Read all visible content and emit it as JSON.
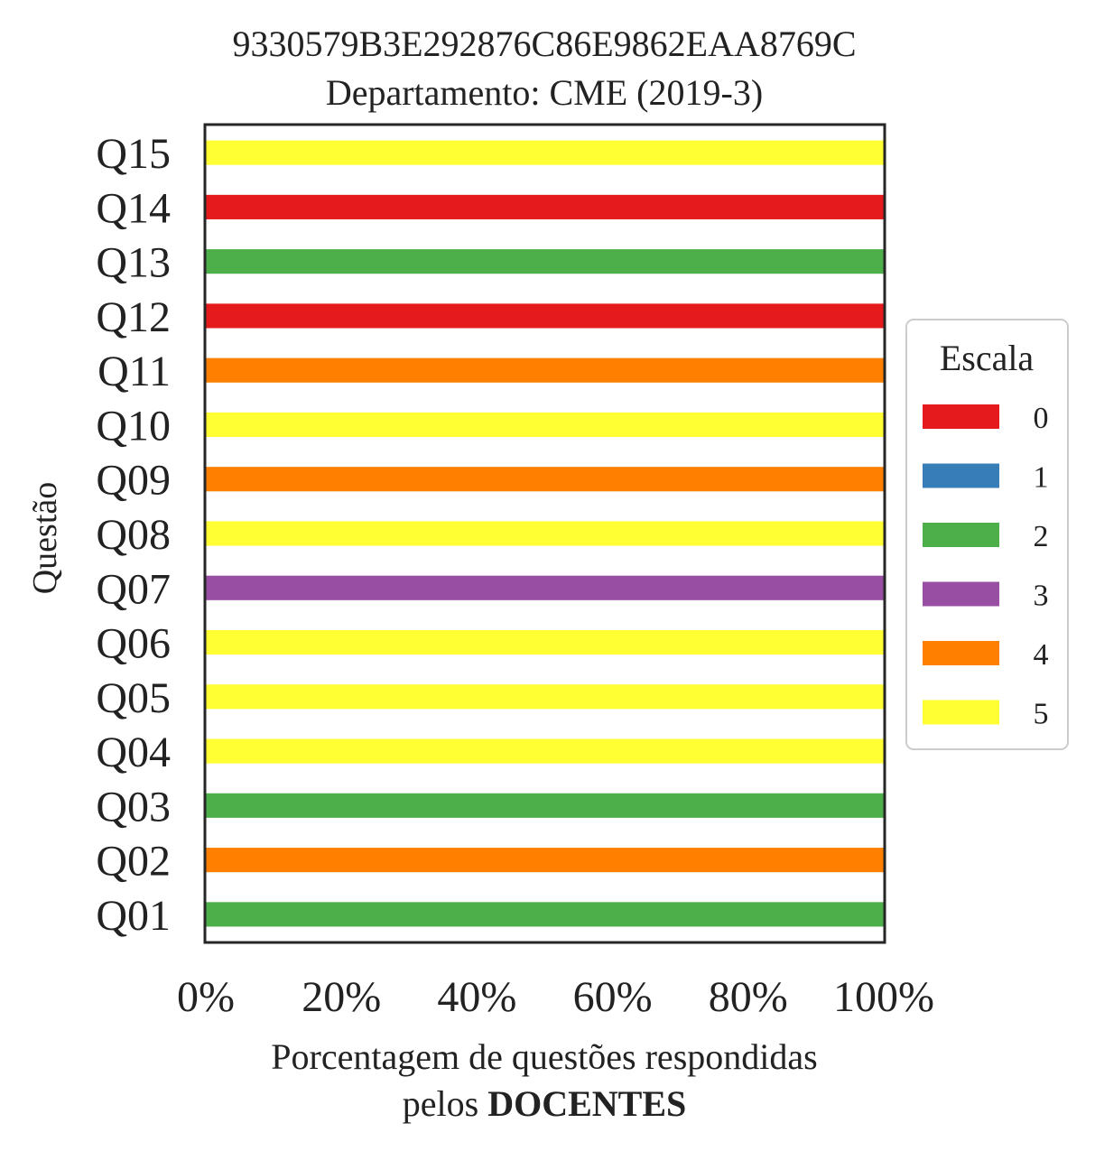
{
  "chart_data": {
    "type": "bar",
    "orientation": "horizontal",
    "stacked": true,
    "title_line1": "9330579B3E292876C86E9862EAA8769C",
    "title_line2": "Departamento: CME (2019-3)",
    "ylabel": "Questão",
    "xlabel_line1": "Porcentagem de questões respondidas",
    "xlabel_line2_prefix": "pelos ",
    "xlabel_line2_bold": "DOCENTES",
    "xlim": [
      0,
      100
    ],
    "xticks": [
      0,
      20,
      40,
      60,
      80,
      100
    ],
    "xtick_labels": [
      "0%",
      "20%",
      "40%",
      "60%",
      "80%",
      "100%"
    ],
    "categories": [
      "Q01",
      "Q02",
      "Q03",
      "Q04",
      "Q05",
      "Q06",
      "Q07",
      "Q08",
      "Q09",
      "Q10",
      "Q11",
      "Q12",
      "Q13",
      "Q14",
      "Q15"
    ],
    "legend": {
      "title": "Escala",
      "placement": "center-right, outside"
    },
    "series": [
      {
        "name": "0",
        "color": "#e41a1c",
        "values": [
          0,
          0,
          0,
          0,
          0,
          0,
          0,
          0,
          0,
          0,
          0,
          100,
          0,
          100,
          0
        ]
      },
      {
        "name": "1",
        "color": "#377eb8",
        "values": [
          0,
          0,
          0,
          0,
          0,
          0,
          0,
          0,
          0,
          0,
          0,
          0,
          0,
          0,
          0
        ]
      },
      {
        "name": "2",
        "color": "#4daf4a",
        "values": [
          100,
          0,
          100,
          0,
          0,
          0,
          0,
          0,
          0,
          0,
          0,
          0,
          100,
          0,
          0
        ]
      },
      {
        "name": "3",
        "color": "#984ea3",
        "values": [
          0,
          0,
          0,
          0,
          0,
          0,
          100,
          0,
          0,
          0,
          0,
          0,
          0,
          0,
          0
        ]
      },
      {
        "name": "4",
        "color": "#ff7f00",
        "values": [
          0,
          100,
          0,
          0,
          0,
          0,
          0,
          0,
          100,
          0,
          100,
          0,
          0,
          0,
          0
        ]
      },
      {
        "name": "5",
        "color": "#ffff33",
        "values": [
          0,
          0,
          0,
          100,
          100,
          100,
          0,
          100,
          0,
          100,
          0,
          0,
          0,
          0,
          100
        ]
      }
    ]
  }
}
